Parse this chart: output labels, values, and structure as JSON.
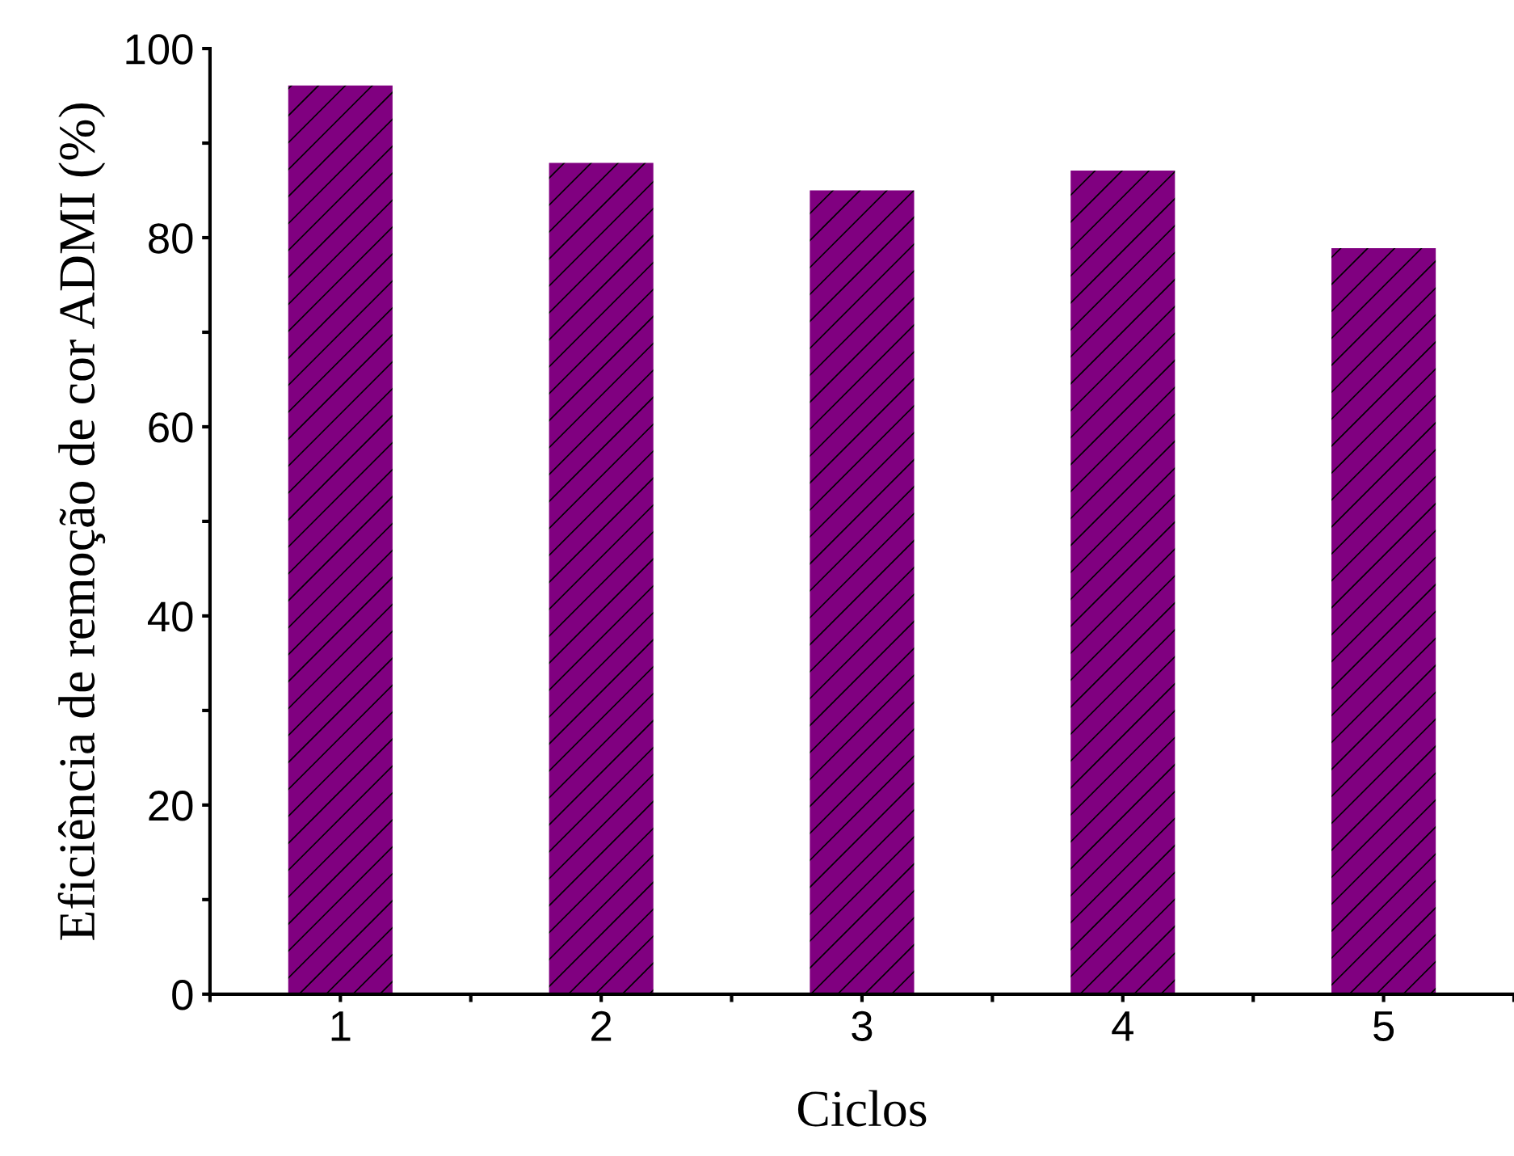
{
  "chart_data": {
    "type": "bar",
    "xlabel": "Ciclos",
    "ylabel": "Eficiência de remoção de cor ADMI (%)",
    "x": [
      1,
      2,
      3,
      4,
      5
    ],
    "values": [
      96.1,
      87.9,
      85.0,
      87.1,
      78.9
    ],
    "color": "#800080",
    "xlim": [
      0.5,
      5.5
    ],
    "xticks": [
      {
        "value": 0.5,
        "label": null
      },
      1,
      {
        "value": 1.5,
        "label": null
      },
      2,
      {
        "value": 2.5,
        "label": null
      },
      3,
      {
        "value": 3.5,
        "label": null
      },
      4,
      {
        "value": 4.5,
        "label": null
      },
      5,
      {
        "value": 5.5,
        "label": null
      }
    ],
    "ylim": [
      0,
      100
    ],
    "yticks": [
      0,
      {
        "value": 10,
        "label": null
      },
      20,
      {
        "value": 30,
        "label": null
      },
      40,
      {
        "value": 50,
        "label": null
      },
      60,
      {
        "value": 70,
        "label": null
      },
      80,
      {
        "value": 90,
        "label": null
      },
      100
    ],
    "grid": false,
    "legend": false
  }
}
